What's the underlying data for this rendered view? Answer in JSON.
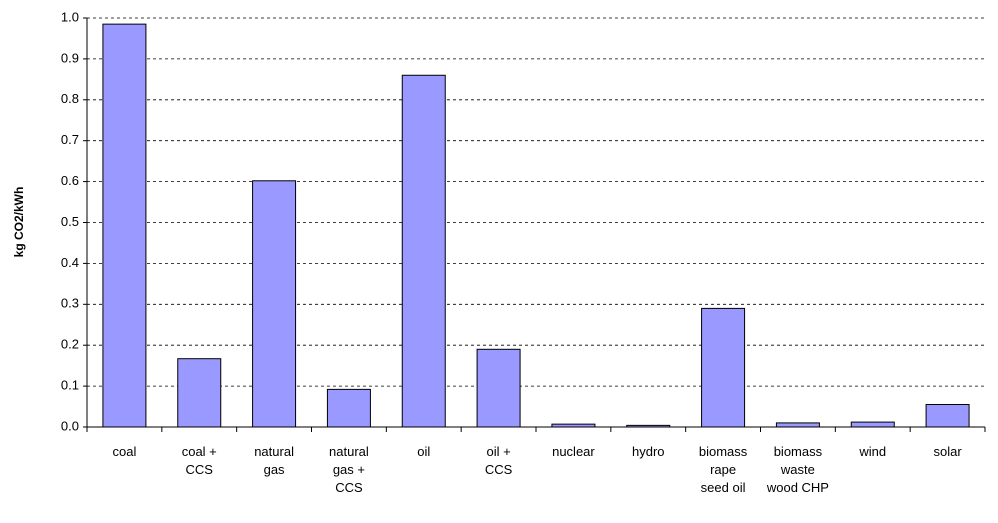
{
  "chart_data": {
    "type": "bar",
    "ylabel": "kg CO2/kWh",
    "categories": [
      "coal",
      "coal + CCS",
      "natural gas",
      "natural gas + CCS",
      "oil",
      "oil + CCS",
      "nuclear",
      "hydro",
      "biomass rape seed oil",
      "biomass waste wood CHP",
      "wind",
      "solar"
    ],
    "values": [
      0.985,
      0.167,
      0.602,
      0.092,
      0.86,
      0.19,
      0.007,
      0.004,
      0.29,
      0.01,
      0.012,
      0.055
    ],
    "color": "#9999ff",
    "ylim": [
      0,
      1
    ],
    "yticks": [
      {
        "value": 0,
        "label": "0.0"
      },
      0.1,
      0.2,
      0.3,
      0.4,
      0.5,
      0.6,
      0.7,
      0.8,
      0.9,
      {
        "value": 1,
        "label": "1.0"
      }
    ],
    "grid": true
  }
}
